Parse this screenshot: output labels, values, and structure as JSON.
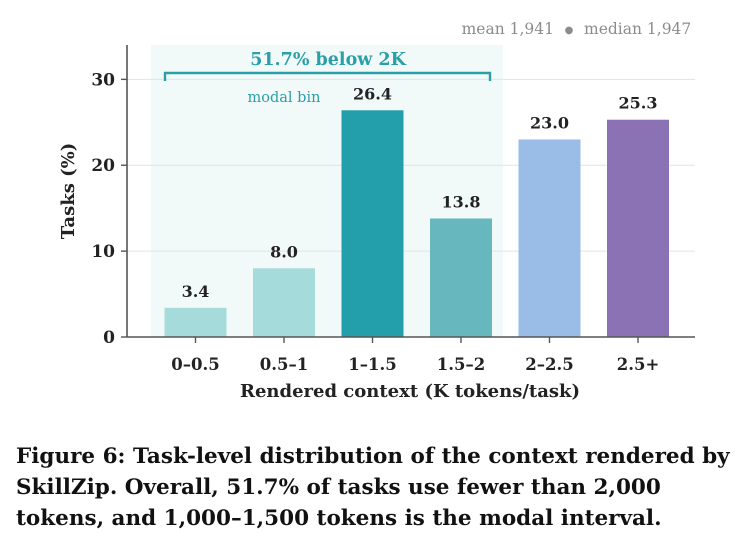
{
  "chart_data": {
    "type": "bar",
    "categories": [
      "0–0.5",
      "0.5–1",
      "1–1.5",
      "1.5–2",
      "2–2.5",
      "2.5+"
    ],
    "values": [
      3.4,
      8.0,
      26.4,
      13.8,
      23.0,
      25.3
    ],
    "value_labels": [
      "3.4",
      "8.0",
      "26.4",
      "13.8",
      "23.0",
      "25.3"
    ],
    "bar_colors": [
      "#a6dbdc",
      "#a6dbdc",
      "#229fab",
      "#66b8be",
      "#99bde6",
      "#8b72b4"
    ],
    "xlabel": "Rendered context (K tokens/task)",
    "ylabel": "Tasks (%)",
    "ylim": [
      0,
      34
    ],
    "yticks": [
      0,
      10,
      20,
      30
    ],
    "grid": "horizontal",
    "stats_text": {
      "mean": "mean 1,941",
      "separator": "●",
      "median": "median 1,947"
    },
    "annotations": {
      "below_2k": "51.7% below 2K",
      "modal_bin": "modal bin"
    },
    "colors": {
      "accent": "#2aa0a6",
      "shade": "#f1f9f9",
      "axis": "#555555",
      "grid": "#e3e3e3",
      "stats_text": "#8c8c8c"
    }
  },
  "caption": "Figure 6: Task-level distribution of the context rendered by SkillZip. Overall, 51.7% of tasks use fewer than 2,000 tokens, and 1,000–1,500 tokens is the modal interval."
}
